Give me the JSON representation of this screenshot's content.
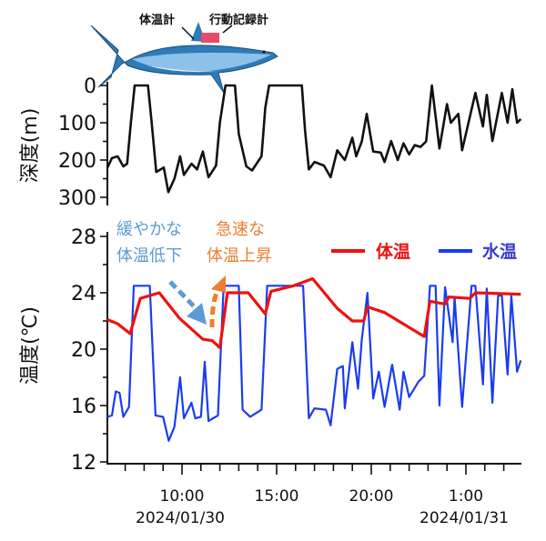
{
  "chart_data": [
    {
      "type": "line",
      "title": "",
      "ylabel": "深度(m)",
      "ylim": [
        0,
        300
      ],
      "yticks": [
        "0",
        "100",
        "200",
        "300"
      ],
      "x_units": "hours since 2024/01/30 0:00",
      "xlim": [
        6.05,
        27.9
      ],
      "series": [
        {
          "name": "深度",
          "color": "#111111",
          "points": [
            [
              6.05,
              222
            ],
            [
              6.3,
              195
            ],
            [
              6.6,
              190
            ],
            [
              6.9,
              217
            ],
            [
              7.1,
              210
            ],
            [
              7.3,
              100
            ],
            [
              7.5,
              0
            ],
            [
              8.2,
              0
            ],
            [
              8.4,
              100
            ],
            [
              8.64,
              232
            ],
            [
              9.04,
              220
            ],
            [
              9.28,
              286
            ],
            [
              9.6,
              250
            ],
            [
              9.9,
              190
            ],
            [
              10.1,
              240
            ],
            [
              10.5,
              210
            ],
            [
              10.8,
              225
            ],
            [
              11.1,
              177
            ],
            [
              11.4,
              246
            ],
            [
              11.8,
              215
            ],
            [
              12.0,
              100
            ],
            [
              12.3,
              0
            ],
            [
              12.8,
              0
            ],
            [
              13.0,
              130
            ],
            [
              13.4,
              217
            ],
            [
              13.7,
              228
            ],
            [
              14.0,
              205
            ],
            [
              14.2,
              190
            ],
            [
              14.4,
              60
            ],
            [
              14.6,
              0
            ],
            [
              16.33,
              0
            ],
            [
              16.5,
              120
            ],
            [
              16.7,
              225
            ],
            [
              17.0,
              205
            ],
            [
              17.5,
              215
            ],
            [
              17.85,
              246
            ],
            [
              18.2,
              174
            ],
            [
              18.6,
              200
            ],
            [
              19.0,
              140
            ],
            [
              19.2,
              190
            ],
            [
              19.5,
              150
            ],
            [
              19.76,
              76
            ],
            [
              20.1,
              177
            ],
            [
              20.5,
              180
            ],
            [
              20.7,
              205
            ],
            [
              21.05,
              149
            ],
            [
              21.4,
              200
            ],
            [
              21.7,
              155
            ],
            [
              22.0,
              185
            ],
            [
              22.3,
              160
            ],
            [
              22.6,
              165
            ],
            [
              22.9,
              150
            ],
            [
              23.2,
              0
            ],
            [
              23.6,
              169
            ],
            [
              24.0,
              50
            ],
            [
              24.2,
              100
            ],
            [
              24.6,
              76
            ],
            [
              24.8,
              174
            ],
            [
              25.5,
              20
            ],
            [
              25.9,
              110
            ],
            [
              26.1,
              25
            ],
            [
              26.4,
              149
            ],
            [
              26.9,
              20
            ],
            [
              27.2,
              100
            ],
            [
              27.45,
              10
            ],
            [
              27.7,
              100
            ],
            [
              27.9,
              90
            ]
          ]
        }
      ]
    },
    {
      "type": "line",
      "title": "",
      "ylabel": "温度(℃)",
      "ylim": [
        12,
        28
      ],
      "yticks": [
        "12",
        "16",
        "20",
        "24",
        "28"
      ],
      "x_units": "hours since 2024/01/30 0:00",
      "xlim": [
        6.05,
        27.9
      ],
      "xticks": [
        {
          "h": 10,
          "label": "10:00",
          "date": "2024/01/30"
        },
        {
          "h": 15,
          "label": "15:00",
          "date": ""
        },
        {
          "h": 20,
          "label": "20:00",
          "date": ""
        },
        {
          "h": 25,
          "label": "1:00",
          "date": "2024/01/31"
        }
      ],
      "legend": {
        "position": "top-right"
      },
      "series": [
        {
          "name": "体温",
          "color": "#ee1111",
          "points": [
            [
              6.05,
              22.1
            ],
            [
              6.6,
              21.8
            ],
            [
              7.26,
              21.1
            ],
            [
              7.8,
              23.6
            ],
            [
              8.8,
              24.0
            ],
            [
              9.86,
              22.2
            ],
            [
              11.1,
              20.7
            ],
            [
              11.6,
              20.6
            ],
            [
              12.0,
              20.1
            ],
            [
              12.4,
              24.0
            ],
            [
              13.5,
              24.0
            ],
            [
              14.4,
              22.5
            ],
            [
              14.7,
              24.1
            ],
            [
              15.9,
              24.5
            ],
            [
              16.9,
              25.0
            ],
            [
              18.2,
              22.9
            ],
            [
              19.0,
              22.0
            ],
            [
              19.6,
              22.0
            ],
            [
              19.8,
              23.0
            ],
            [
              20.7,
              22.6
            ],
            [
              22.8,
              20.9
            ],
            [
              23.1,
              23.4
            ],
            [
              23.9,
              23.2
            ],
            [
              24.1,
              23.7
            ],
            [
              25.2,
              23.6
            ],
            [
              25.5,
              24.0
            ],
            [
              27.9,
              23.9
            ]
          ]
        },
        {
          "name": "水温",
          "color": "#1a3cf0",
          "points": [
            [
              6.05,
              15.2
            ],
            [
              6.3,
              15.3
            ],
            [
              6.5,
              17.0
            ],
            [
              6.7,
              16.9
            ],
            [
              6.9,
              15.2
            ],
            [
              7.2,
              15.9
            ],
            [
              7.45,
              24.5
            ],
            [
              8.3,
              24.5
            ],
            [
              8.6,
              15.3
            ],
            [
              9.0,
              15.2
            ],
            [
              9.3,
              13.5
            ],
            [
              9.6,
              14.5
            ],
            [
              9.9,
              18.0
            ],
            [
              10.1,
              15.1
            ],
            [
              10.5,
              16.2
            ],
            [
              10.7,
              15.1
            ],
            [
              11.0,
              15.2
            ],
            [
              11.2,
              19.1
            ],
            [
              11.4,
              14.9
            ],
            [
              11.9,
              15.3
            ],
            [
              12.2,
              24.5
            ],
            [
              13.0,
              24.5
            ],
            [
              13.2,
              15.7
            ],
            [
              13.6,
              15.2
            ],
            [
              14.2,
              15.7
            ],
            [
              14.5,
              24.5
            ],
            [
              16.4,
              24.5
            ],
            [
              16.7,
              15.1
            ],
            [
              17.0,
              15.8
            ],
            [
              17.6,
              15.7
            ],
            [
              17.85,
              14.6
            ],
            [
              18.2,
              18.6
            ],
            [
              18.5,
              18.8
            ],
            [
              18.6,
              15.8
            ],
            [
              19.0,
              20.5
            ],
            [
              19.3,
              17.2
            ],
            [
              19.5,
              20.7
            ],
            [
              19.8,
              24.0
            ],
            [
              20.1,
              16.5
            ],
            [
              20.4,
              18.4
            ],
            [
              20.7,
              15.9
            ],
            [
              21.1,
              18.9
            ],
            [
              21.5,
              15.7
            ],
            [
              21.7,
              18.4
            ],
            [
              22.0,
              16.6
            ],
            [
              22.5,
              17.7
            ],
            [
              22.8,
              18.1
            ],
            [
              23.1,
              24.5
            ],
            [
              23.4,
              24.5
            ],
            [
              23.6,
              16.0
            ],
            [
              23.9,
              24.4
            ],
            [
              24.3,
              20.5
            ],
            [
              24.4,
              23.7
            ],
            [
              24.8,
              15.9
            ],
            [
              25.3,
              24.5
            ],
            [
              25.5,
              24.5
            ],
            [
              25.9,
              17.5
            ],
            [
              26.1,
              24.3
            ],
            [
              26.4,
              16.2
            ],
            [
              26.7,
              23.8
            ],
            [
              26.9,
              23.8
            ],
            [
              27.2,
              18.2
            ],
            [
              27.4,
              23.8
            ],
            [
              27.7,
              18.4
            ],
            [
              27.9,
              19.2
            ]
          ]
        }
      ],
      "annotations": {
        "slow_line1": "緩やかな",
        "slow_line2": "体温低下",
        "slow_color": "#5b9bd5",
        "fast_line1": "急速な",
        "fast_line2": "体温上昇",
        "fast_color": "#ed7d31"
      }
    }
  ],
  "illustration": {
    "thermometer_label": "体温計",
    "logger_label": "行動記録計"
  }
}
